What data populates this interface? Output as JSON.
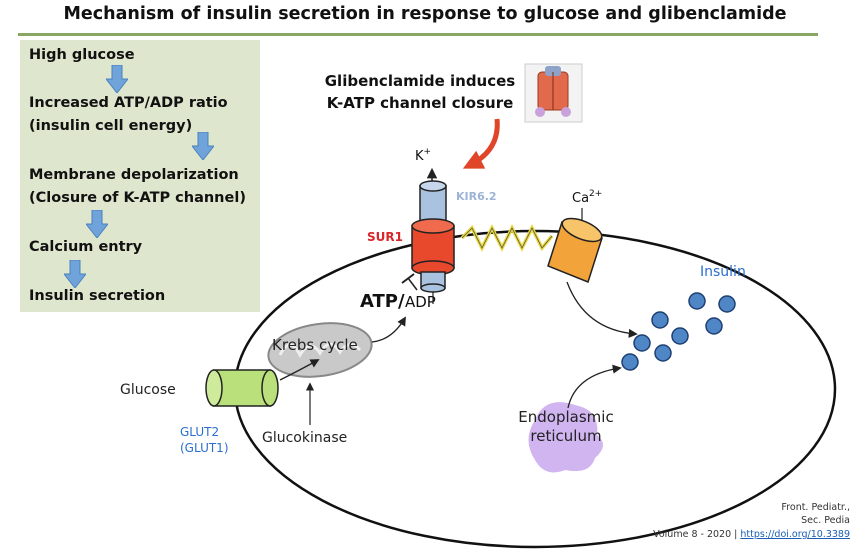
{
  "title": "Mechanism of insulin secretion in response to glucose and glibenclamide",
  "steps": [
    "High glucose",
    "Increased ATP/ADP ratio",
    "(insulin cell energy)",
    "Membrane depolarization",
    "(Closure of K-ATP channel)",
    "Calcium entry",
    "Insulin secretion"
  ],
  "callout": {
    "line1": "Glibenclamide induces",
    "line2": "K-ATP channel closure"
  },
  "labels": {
    "k_ion": "K",
    "k_charge": "+",
    "kir": "KIR6.2",
    "sur": "SUR1",
    "ca_ion": "Ca",
    "ca_charge": "2+",
    "insulin": "Insulin",
    "atp": "ATP/",
    "adp": "ADP",
    "krebs": "Krebs cycle",
    "glucose": "Glucose",
    "glut_line1": "GLUT2",
    "glut_line2": "(GLUT1)",
    "glucokinase": "Glucokinase",
    "er_line1": "Endoplasmic",
    "er_line2": "reticulum"
  },
  "citation": {
    "line1": "Front. Pediatr.,",
    "line2": "Sec. Pedia",
    "line3_prefix": "Volume 8 - 2020 | ",
    "line3_link": "https://doi.org/10.3389"
  },
  "colors": {
    "rule": "#8aa663",
    "step_box": "#dfe6ce",
    "arrow_blue": "#6fa3da",
    "glut_green": "#b9e07a",
    "sur_red": "#e8492d",
    "kir_blue": "#a9c2e0",
    "ca_orange": "#f2a33a",
    "insulin_blue": "#4f86c6",
    "er_purple": "#c9a8ef",
    "label_blue": "#2a6fcf",
    "sur_label": "#d8262a"
  }
}
